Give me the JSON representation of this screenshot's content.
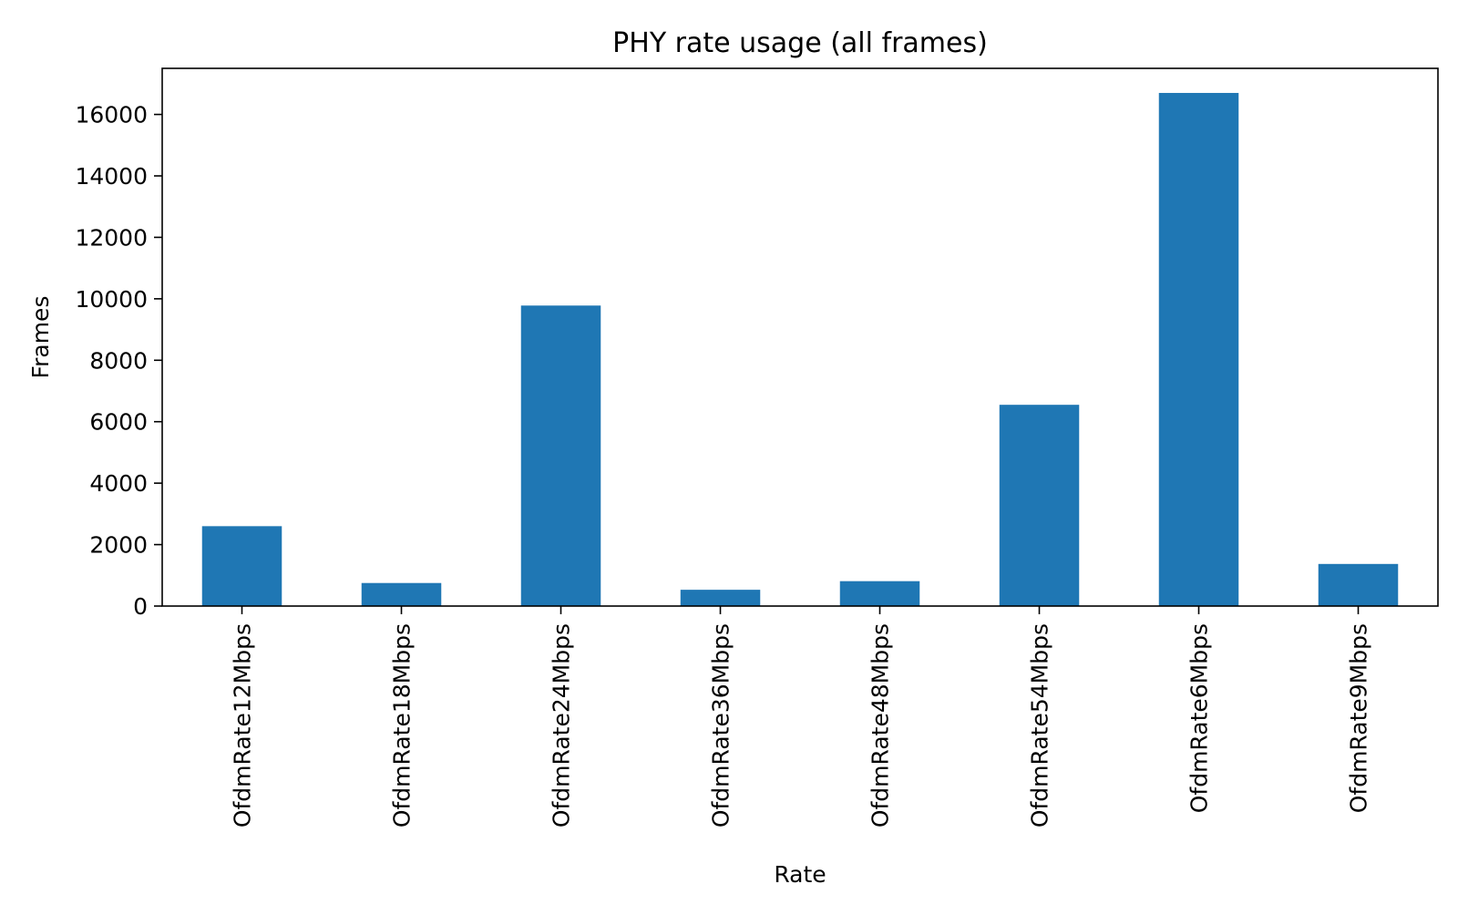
{
  "chart_data": {
    "type": "bar",
    "title": "PHY rate usage (all frames)",
    "xlabel": "Rate",
    "ylabel": "Frames",
    "categories": [
      "OfdmRate12Mbps",
      "OfdmRate18Mbps",
      "OfdmRate24Mbps",
      "OfdmRate36Mbps",
      "OfdmRate48Mbps",
      "OfdmRate54Mbps",
      "OfdmRate6Mbps",
      "OfdmRate9Mbps"
    ],
    "values": [
      2600,
      750,
      9780,
      530,
      810,
      6550,
      16700,
      1370
    ],
    "ylim": [
      0,
      17500
    ],
    "yticks": [
      0,
      2000,
      4000,
      6000,
      8000,
      10000,
      12000,
      14000,
      16000
    ],
    "ytick_labels": [
      "0",
      "2000",
      "4000",
      "6000",
      "8000",
      "10000",
      "12000",
      "14000",
      "16000"
    ],
    "bar_color": "#1f77b4",
    "grid": false,
    "legend": false
  }
}
